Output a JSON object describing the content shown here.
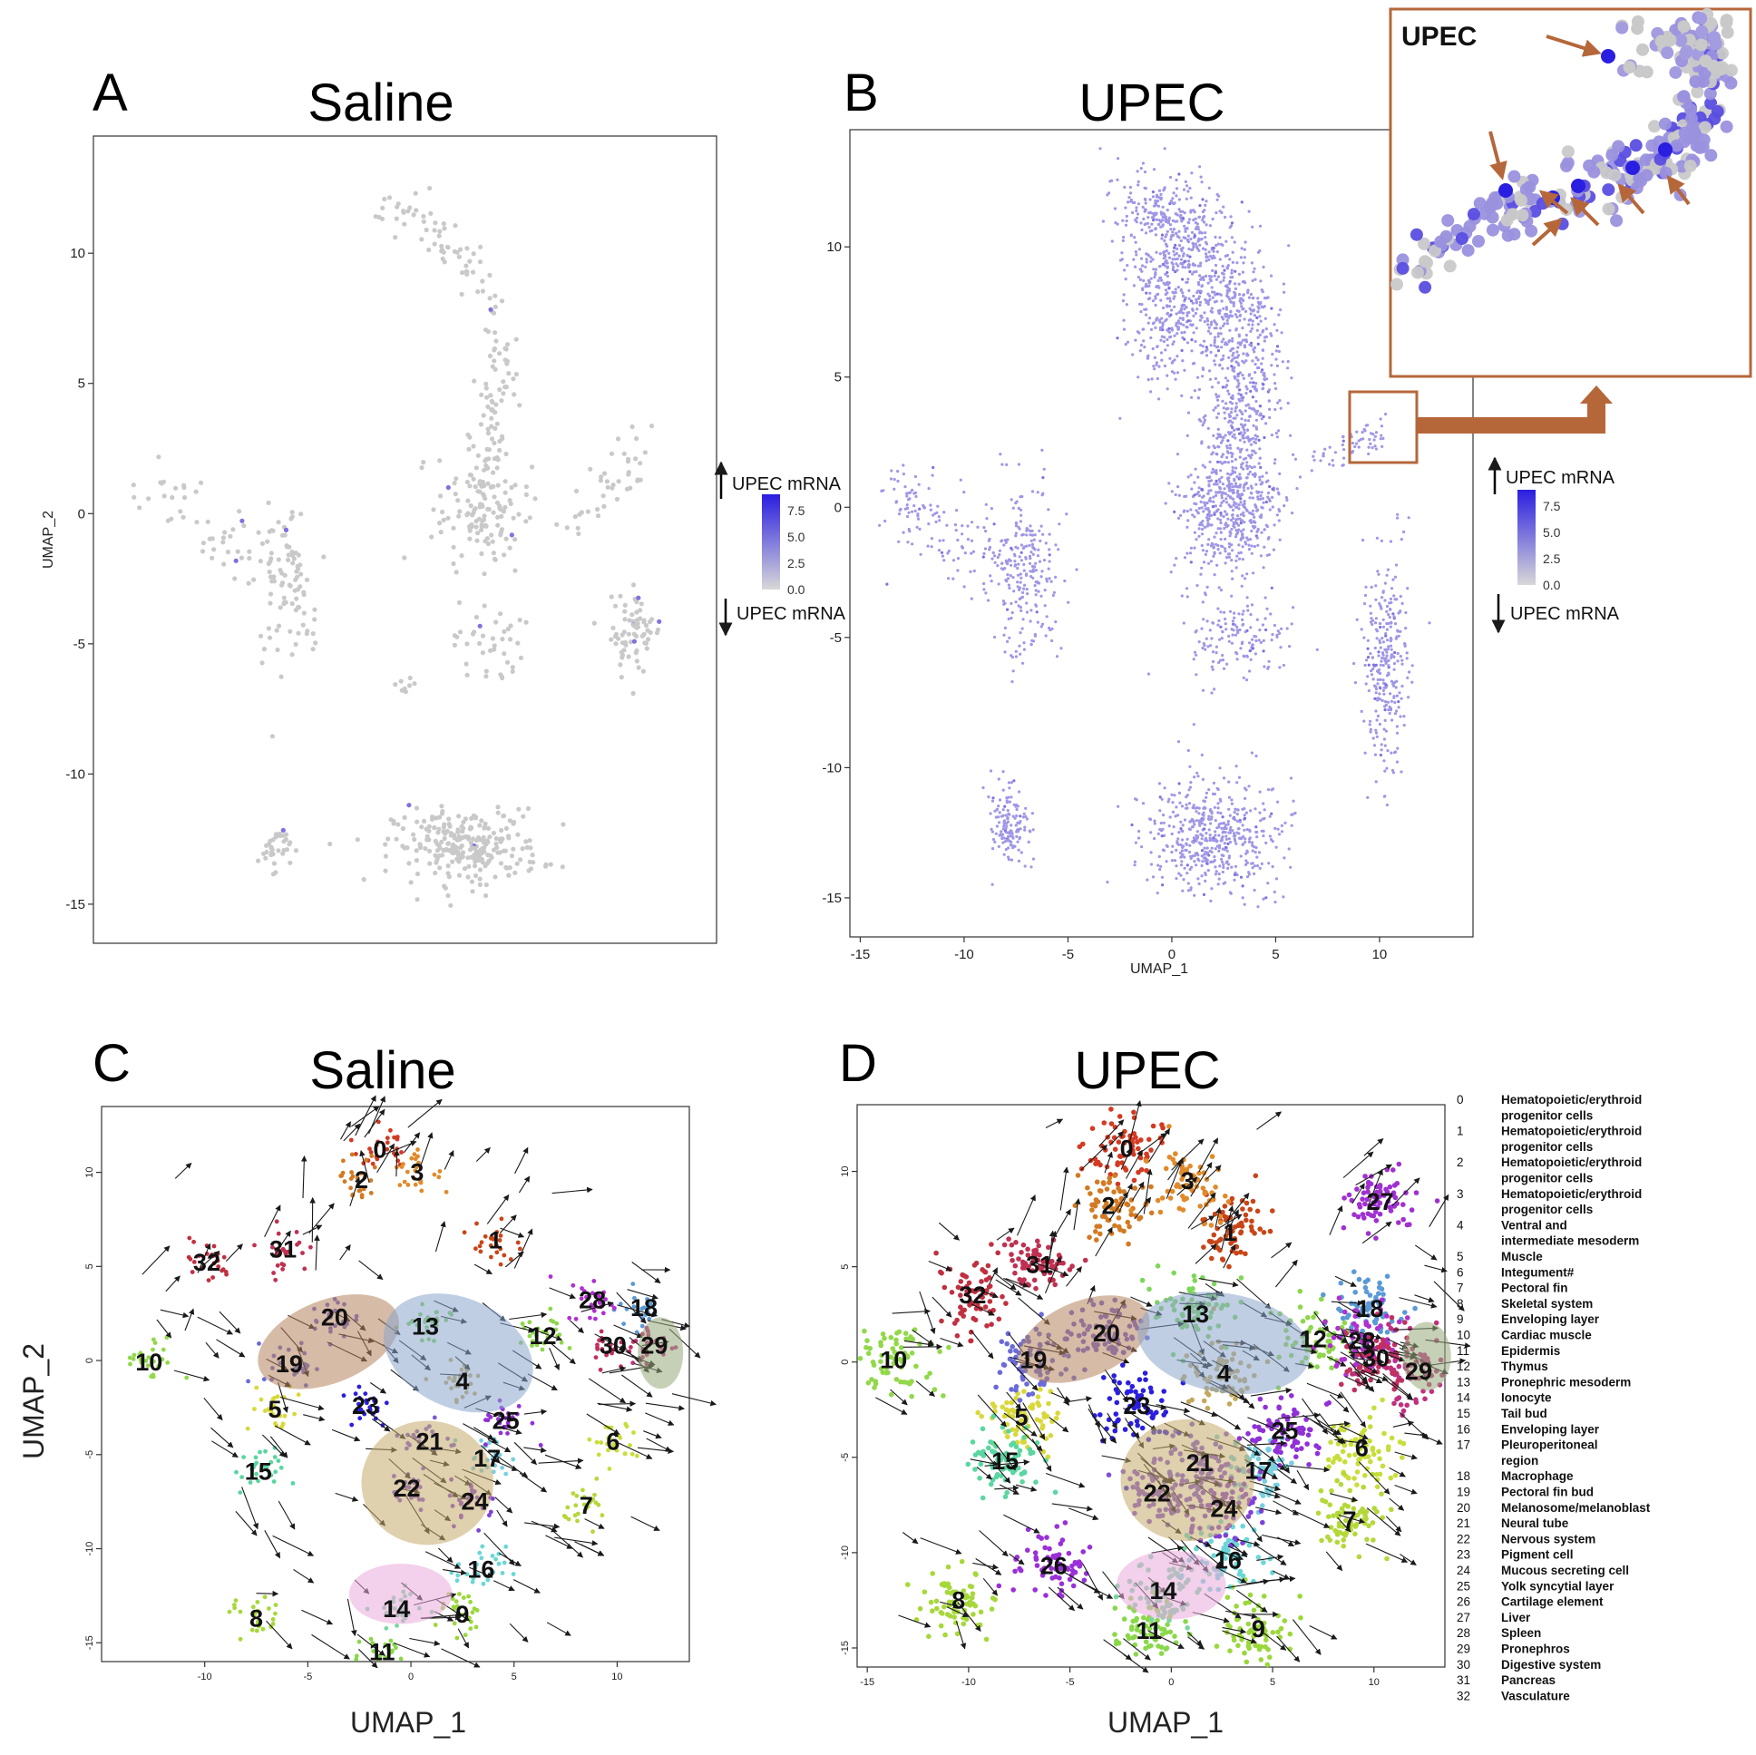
{
  "figure": {
    "panel_letters": [
      "A",
      "B",
      "C",
      "D"
    ],
    "colors": {
      "gray_cell": "#c9c9c9",
      "upec_cell": "#9f97e6",
      "high_expr": "#2a1ee0",
      "inset_frame": "#b5673a",
      "arrow": "#1a1a1a"
    }
  },
  "chart_data": [
    {
      "panel": "A",
      "type": "scatter",
      "title": "Saline",
      "xlabel": "",
      "ylabel": "UMAP_2",
      "xlim": [
        -15.5,
        14.5
      ],
      "ylim": [
        -16.5,
        14.5
      ],
      "yticks": [
        10,
        5,
        0,
        -5,
        -10,
        -15
      ],
      "xticks": [],
      "point_color": "#c9c9c9",
      "legend": {
        "title_high": "UPEC mRNA",
        "title_low": "UPEC mRNA",
        "ticks": [
          "7.5",
          "5.0",
          "2.5",
          "0.0"
        ],
        "gradient": [
          "#2a1ee0",
          "#d0d0d0"
        ]
      },
      "clusters": [
        {
          "name": "upper arc",
          "path": [
            [
              -1.8,
              11.6
            ],
            [
              0.5,
              11.2
            ],
            [
              2.5,
              9.5
            ],
            [
              3.8,
              7.2
            ],
            [
              4.1,
              5.0
            ],
            [
              3.6,
              2.8
            ],
            [
              3.4,
              1.2
            ]
          ],
          "spread": 0.45,
          "n": 150
        },
        {
          "name": "central blob",
          "cx": 3.2,
          "cy": 0.0,
          "rx": 2.0,
          "ry": 2.0,
          "n": 120
        },
        {
          "name": "left arm",
          "path": [
            [
              -12.5,
              1.5
            ],
            [
              -11.0,
              0.0
            ],
            [
              -9.0,
              -1.0
            ],
            [
              -7.0,
              -2.0
            ]
          ],
          "spread": 0.6,
          "n": 50
        },
        {
          "name": "left cluster",
          "cx": -6.5,
          "cy": -2.8,
          "rx": 1.2,
          "ry": 2.6,
          "n": 60
        },
        {
          "name": "left stem",
          "path": [
            [
              -6.0,
              0.3
            ],
            [
              -6.0,
              -2.0
            ],
            [
              -5.0,
              -4.5
            ]
          ],
          "spread": 0.3,
          "n": 30
        },
        {
          "name": "right cluster",
          "cx": 10.5,
          "cy": -4.5,
          "rx": 1.2,
          "ry": 1.5,
          "n": 70
        },
        {
          "name": "right arm",
          "path": [
            [
              7.5,
              -0.5
            ],
            [
              9.5,
              1.0
            ],
            [
              11.0,
              3.0
            ]
          ],
          "spread": 0.5,
          "n": 40
        },
        {
          "name": "mid small",
          "cx": 3.5,
          "cy": -5.0,
          "rx": 1.5,
          "ry": 1.5,
          "n": 40
        },
        {
          "name": "bottom blob",
          "cx": 2.5,
          "cy": -12.8,
          "rx": 3.2,
          "ry": 1.3,
          "n": 260
        },
        {
          "name": "bottom left",
          "cx": -6.8,
          "cy": -12.8,
          "rx": 0.7,
          "ry": 0.8,
          "n": 35
        },
        {
          "name": "small isolated",
          "cx": -0.5,
          "cy": -6.5,
          "rx": 0.4,
          "ry": 0.4,
          "n": 8
        }
      ]
    },
    {
      "panel": "B",
      "type": "scatter",
      "title": "UPEC",
      "xlabel": "UMAP_1",
      "ylabel": "",
      "xlim": [
        -15.5,
        14.5
      ],
      "ylim": [
        -16.5,
        14.5
      ],
      "xticks": [
        -15,
        -10,
        -5,
        0,
        5,
        10
      ],
      "yticks": [
        10,
        5,
        0,
        -5,
        -10,
        -15
      ],
      "point_color": "#9f97e6",
      "legend": {
        "title_high": "UPEC mRNA",
        "title_low": "UPEC mRNA",
        "ticks": [
          "7.5",
          "5.0",
          "2.5",
          "0.0"
        ],
        "gradient": [
          "#2a1ee0",
          "#d0d0d0"
        ]
      },
      "inset_title": "UPEC",
      "clusters": [
        {
          "name": "upper arc",
          "path": [
            [
              -1.8,
              11.6
            ],
            [
              0.5,
              11.0
            ],
            [
              2.5,
              9.0
            ],
            [
              3.5,
              6.5
            ],
            [
              3.5,
              4.0
            ],
            [
              3.0,
              2.0
            ]
          ],
          "spread": 0.9,
          "n": 900
        },
        {
          "name": "arc body",
          "cx": 0.0,
          "cy": 8.0,
          "rx": 2.0,
          "ry": 3.0,
          "n": 400
        },
        {
          "name": "central blob",
          "cx": 2.8,
          "cy": 0.0,
          "rx": 2.2,
          "ry": 2.2,
          "n": 500
        },
        {
          "name": "left arm",
          "path": [
            [
              -13.5,
              0.5
            ],
            [
              -11.5,
              -0.5
            ],
            [
              -9.5,
              -1.5
            ],
            [
              -7.5,
              -2.5
            ]
          ],
          "spread": 0.7,
          "n": 150
        },
        {
          "name": "left cluster",
          "cx": -7.0,
          "cy": -2.5,
          "rx": 1.4,
          "ry": 3.0,
          "n": 220
        },
        {
          "name": "right arm",
          "path": [
            [
              6.5,
              1.5
            ],
            [
              8.5,
              2.5
            ],
            [
              10.0,
              3.0
            ]
          ],
          "spread": 0.4,
          "n": 60
        },
        {
          "name": "right lower",
          "cx": 10.3,
          "cy": -6.0,
          "rx": 1.0,
          "ry": 3.5,
          "n": 280
        },
        {
          "name": "mid lower",
          "cx": 3.0,
          "cy": -5.0,
          "rx": 2.2,
          "ry": 1.5,
          "n": 150
        },
        {
          "name": "bottom blob",
          "cx": 2.0,
          "cy": -12.5,
          "rx": 3.0,
          "ry": 2.0,
          "n": 500
        },
        {
          "name": "bottom left",
          "cx": -7.8,
          "cy": -12.3,
          "rx": 0.8,
          "ry": 1.4,
          "n": 140
        }
      ]
    },
    {
      "panel": "C",
      "type": "scatter",
      "title": "Saline",
      "xlabel": "UMAP_1",
      "ylabel": "UMAP_2",
      "xlim": [
        -15.0,
        13.5
      ],
      "ylim": [
        -16.0,
        13.5
      ],
      "xticks": [
        -10,
        -5,
        0,
        5,
        10
      ],
      "yticks": [
        10,
        5,
        0,
        -5,
        -10,
        -15
      ],
      "cluster_labels": [
        {
          "id": "0",
          "x": -1.5,
          "y": 11.2
        },
        {
          "id": "1",
          "x": 4.1,
          "y": 6.4
        },
        {
          "id": "2",
          "x": -2.4,
          "y": 9.6
        },
        {
          "id": "3",
          "x": 0.3,
          "y": 10.0
        },
        {
          "id": "4",
          "x": 2.5,
          "y": -1.1
        },
        {
          "id": "5",
          "x": -6.6,
          "y": -2.6
        },
        {
          "id": "6",
          "x": 9.8,
          "y": -4.3
        },
        {
          "id": "7",
          "x": 8.5,
          "y": -7.7
        },
        {
          "id": "8",
          "x": -7.5,
          "y": -13.7
        },
        {
          "id": "9",
          "x": 2.5,
          "y": -13.5
        },
        {
          "id": "10",
          "x": -12.7,
          "y": -0.1
        },
        {
          "id": "11",
          "x": -1.4,
          "y": -15.5
        },
        {
          "id": "12",
          "x": 6.4,
          "y": 1.3
        },
        {
          "id": "13",
          "x": 0.7,
          "y": 1.8
        },
        {
          "id": "14",
          "x": -0.7,
          "y": -13.2
        },
        {
          "id": "15",
          "x": -7.4,
          "y": -5.9
        },
        {
          "id": "16",
          "x": 3.4,
          "y": -11.1
        },
        {
          "id": "17",
          "x": 3.7,
          "y": -5.2
        },
        {
          "id": "18",
          "x": 11.3,
          "y": 2.8
        },
        {
          "id": "19",
          "x": -5.9,
          "y": -0.2
        },
        {
          "id": "20",
          "x": -3.7,
          "y": 2.3
        },
        {
          "id": "21",
          "x": 0.9,
          "y": -4.3
        },
        {
          "id": "22",
          "x": -0.2,
          "y": -6.8
        },
        {
          "id": "23",
          "x": -2.2,
          "y": -2.4
        },
        {
          "id": "24",
          "x": 3.1,
          "y": -7.5
        },
        {
          "id": "25",
          "x": 4.6,
          "y": -3.2
        },
        {
          "id": "28",
          "x": 8.8,
          "y": 3.2
        },
        {
          "id": "29",
          "x": 11.8,
          "y": 0.8
        },
        {
          "id": "30",
          "x": 9.8,
          "y": 0.8
        },
        {
          "id": "31",
          "x": -6.2,
          "y": 5.9
        },
        {
          "id": "32",
          "x": -9.9,
          "y": 5.2
        }
      ],
      "ellipses": [
        {
          "color": "#b5835f",
          "cx": -4.0,
          "cy": 1.0,
          "rx": 3.6,
          "ry": 2.2,
          "rot": -22
        },
        {
          "color": "#8da5ce",
          "cx": 2.3,
          "cy": 0.4,
          "rx": 3.8,
          "ry": 2.9,
          "rot": 25
        },
        {
          "color": "#c4a96c",
          "cx": 0.8,
          "cy": -6.5,
          "rx": 3.2,
          "ry": 3.3,
          "rot": 0
        },
        {
          "color": "#e9a9da",
          "cx": -0.5,
          "cy": -12.4,
          "rx": 2.5,
          "ry": 1.6,
          "rot": 0
        },
        {
          "color": "#97a97c",
          "cx": 12.1,
          "cy": 0.4,
          "rx": 1.1,
          "ry": 1.9,
          "rot": 0
        }
      ]
    },
    {
      "panel": "D",
      "type": "scatter",
      "title": "UPEC",
      "xlabel": "UMAP_1",
      "ylabel": "",
      "xlim": [
        -15.5,
        13.5
      ],
      "ylim": [
        -16.0,
        13.5
      ],
      "xticks": [
        -15,
        -10,
        -5,
        0,
        5,
        10
      ],
      "yticks": [
        10,
        5,
        0,
        -5,
        -10,
        -15
      ],
      "cluster_labels": [
        {
          "id": "0",
          "x": -2.2,
          "y": 11.2
        },
        {
          "id": "1",
          "x": 2.9,
          "y": 6.8
        },
        {
          "id": "2",
          "x": -3.1,
          "y": 8.2
        },
        {
          "id": "3",
          "x": 0.8,
          "y": 9.5
        },
        {
          "id": "4",
          "x": 2.6,
          "y": -0.6
        },
        {
          "id": "5",
          "x": -7.4,
          "y": -2.9
        },
        {
          "id": "6",
          "x": 9.4,
          "y": -4.5
        },
        {
          "id": "7",
          "x": 8.8,
          "y": -8.3
        },
        {
          "id": "8",
          "x": -10.5,
          "y": -12.5
        },
        {
          "id": "9",
          "x": 4.3,
          "y": -14.0
        },
        {
          "id": "10",
          "x": -13.7,
          "y": 0.1
        },
        {
          "id": "11",
          "x": -1.1,
          "y": -14.1
        },
        {
          "id": "12",
          "x": 7.0,
          "y": 1.2
        },
        {
          "id": "13",
          "x": 1.2,
          "y": 2.5
        },
        {
          "id": "14",
          "x": -0.4,
          "y": -12.0
        },
        {
          "id": "15",
          "x": -8.2,
          "y": -5.2
        },
        {
          "id": "16",
          "x": 2.8,
          "y": -10.4
        },
        {
          "id": "17",
          "x": 4.3,
          "y": -5.7
        },
        {
          "id": "18",
          "x": 9.8,
          "y": 2.8
        },
        {
          "id": "19",
          "x": -6.8,
          "y": 0.1
        },
        {
          "id": "20",
          "x": -3.2,
          "y": 1.5
        },
        {
          "id": "21",
          "x": 1.4,
          "y": -5.3
        },
        {
          "id": "22",
          "x": -0.7,
          "y": -6.9
        },
        {
          "id": "23",
          "x": -1.7,
          "y": -2.3
        },
        {
          "id": "24",
          "x": 2.6,
          "y": -7.7
        },
        {
          "id": "25",
          "x": 5.6,
          "y": -3.6
        },
        {
          "id": "26",
          "x": -5.8,
          "y": -10.7
        },
        {
          "id": "27",
          "x": 10.3,
          "y": 8.4
        },
        {
          "id": "28",
          "x": 9.4,
          "y": 1.1
        },
        {
          "id": "29",
          "x": 12.2,
          "y": -0.5
        },
        {
          "id": "30",
          "x": 10.1,
          "y": 0.2
        },
        {
          "id": "31",
          "x": -6.5,
          "y": 5.1
        },
        {
          "id": "32",
          "x": -9.8,
          "y": 3.5
        }
      ],
      "ellipses": [
        {
          "color": "#b5835f",
          "cx": -4.3,
          "cy": 1.2,
          "rx": 3.4,
          "ry": 2.0,
          "rot": -22
        },
        {
          "color": "#8da5ce",
          "cx": 2.6,
          "cy": 1.0,
          "rx": 4.3,
          "ry": 2.6,
          "rot": 10
        },
        {
          "color": "#c4a96c",
          "cx": 0.8,
          "cy": -6.2,
          "rx": 3.3,
          "ry": 3.2,
          "rot": 0
        },
        {
          "color": "#e9a9da",
          "cx": 0.0,
          "cy": -11.7,
          "rx": 2.7,
          "ry": 1.8,
          "rot": 0
        },
        {
          "color": "#97a97c",
          "cx": 12.6,
          "cy": 0.3,
          "rx": 1.2,
          "ry": 1.8,
          "rot": 0
        }
      ]
    }
  ],
  "cell_type_key": [
    {
      "id": "0",
      "name": "Hematopoietic/erythroid progenitor cells"
    },
    {
      "id": "1",
      "name": "Hematopoietic/erythroid progenitor cells"
    },
    {
      "id": "2",
      "name": "Hematopoietic/erythroid progenitor cells"
    },
    {
      "id": "3",
      "name": "Hematopoietic/erythroid progenitor cells"
    },
    {
      "id": "4",
      "name": "Ventral and intermediate mesoderm"
    },
    {
      "id": "5",
      "name": "Muscle"
    },
    {
      "id": "6",
      "name": "Integument#"
    },
    {
      "id": "7",
      "name": "Pectoral fin"
    },
    {
      "id": "8",
      "name": "Skeletal system"
    },
    {
      "id": "9",
      "name": "Enveloping layer"
    },
    {
      "id": "10",
      "name": "Cardiac muscle"
    },
    {
      "id": "11",
      "name": "Epidermis"
    },
    {
      "id": "12",
      "name": "Thymus"
    },
    {
      "id": "13",
      "name": "Pronephric mesoderm"
    },
    {
      "id": "14",
      "name": "Ionocyte"
    },
    {
      "id": "15",
      "name": "Tail bud"
    },
    {
      "id": "16",
      "name": "Enveloping layer"
    },
    {
      "id": "17",
      "name": "Pleuroperitoneal region"
    },
    {
      "id": "18",
      "name": "Macrophage"
    },
    {
      "id": "19",
      "name": "Pectoral fin bud"
    },
    {
      "id": "20",
      "name": "Melanosome/melanoblast"
    },
    {
      "id": "21",
      "name": "Neural tube"
    },
    {
      "id": "22",
      "name": "Nervous system"
    },
    {
      "id": "23",
      "name": "Pigment cell"
    },
    {
      "id": "24",
      "name": "Mucous secreting cell"
    },
    {
      "id": "25",
      "name": "Yolk syncytial layer"
    },
    {
      "id": "26",
      "name": "Cartilage element"
    },
    {
      "id": "27",
      "name": "Liver"
    },
    {
      "id": "28",
      "name": "Spleen"
    },
    {
      "id": "29",
      "name": "Pronephros"
    },
    {
      "id": "30",
      "name": "Digestive system"
    },
    {
      "id": "31",
      "name": "Pancreas"
    },
    {
      "id": "32",
      "name": "Vasculature"
    }
  ]
}
